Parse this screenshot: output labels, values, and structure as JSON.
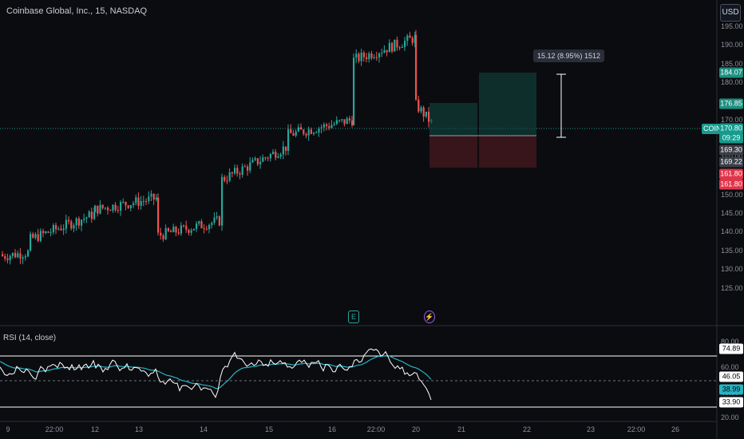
{
  "header": {
    "title": "Coinbase Global, Inc., 15, NASDAQ",
    "currency_button": "USD"
  },
  "rsi": {
    "label": "RSI (14, close)"
  },
  "price_axis": [
    "195.00",
    "190.00",
    "185.00",
    "180.00",
    "175.00",
    "170.00",
    "165.00",
    "160.00",
    "155.00",
    "150.00",
    "145.00",
    "140.00",
    "135.00",
    "130.00",
    "125.00"
  ],
  "rsi_axis": [
    "80.00",
    "60.00",
    "40.00",
    "20.00"
  ],
  "price_tags": [
    {
      "text": "184.07",
      "color": "#1e8f7e"
    },
    {
      "text": "176.85",
      "color": "#1e8f7e"
    },
    {
      "text": "170.80",
      "color": "#169b8d"
    },
    {
      "text": "09:29",
      "color": "#169b8d"
    },
    {
      "text": "169.30",
      "color": "#3a3e48"
    },
    {
      "text": "169.22",
      "color": "#3a3e48"
    },
    {
      "text": "161.80",
      "color": "#e0344a"
    },
    {
      "text": "161.80",
      "color": "#e0344a"
    }
  ],
  "rsi_tags": [
    {
      "text": "74.89",
      "color": "#ffffff",
      "fg": "#000000"
    },
    {
      "text": "46.05",
      "color": "#ffffff",
      "fg": "#000000"
    },
    {
      "text": "38.99",
      "color": "#26b4c4",
      "fg": "#000000"
    },
    {
      "text": "33.90",
      "color": "#ffffff",
      "fg": "#000000"
    }
  ],
  "symbol_tag": "COIN",
  "measure_label": "15.12 (8.95%) 1512",
  "time_axis": [
    "9",
    "22:00",
    "12",
    "13",
    "14",
    "15",
    "16",
    "22:00",
    "20",
    "21",
    "22",
    "23",
    "22:00",
    "26"
  ],
  "events": {
    "earnings": "E",
    "dividend": "⚡"
  },
  "colors": {
    "up": "#26a69a",
    "down": "#ef5350",
    "rsi": "#ffffff",
    "rsi_ma": "#26b4c4"
  }
}
